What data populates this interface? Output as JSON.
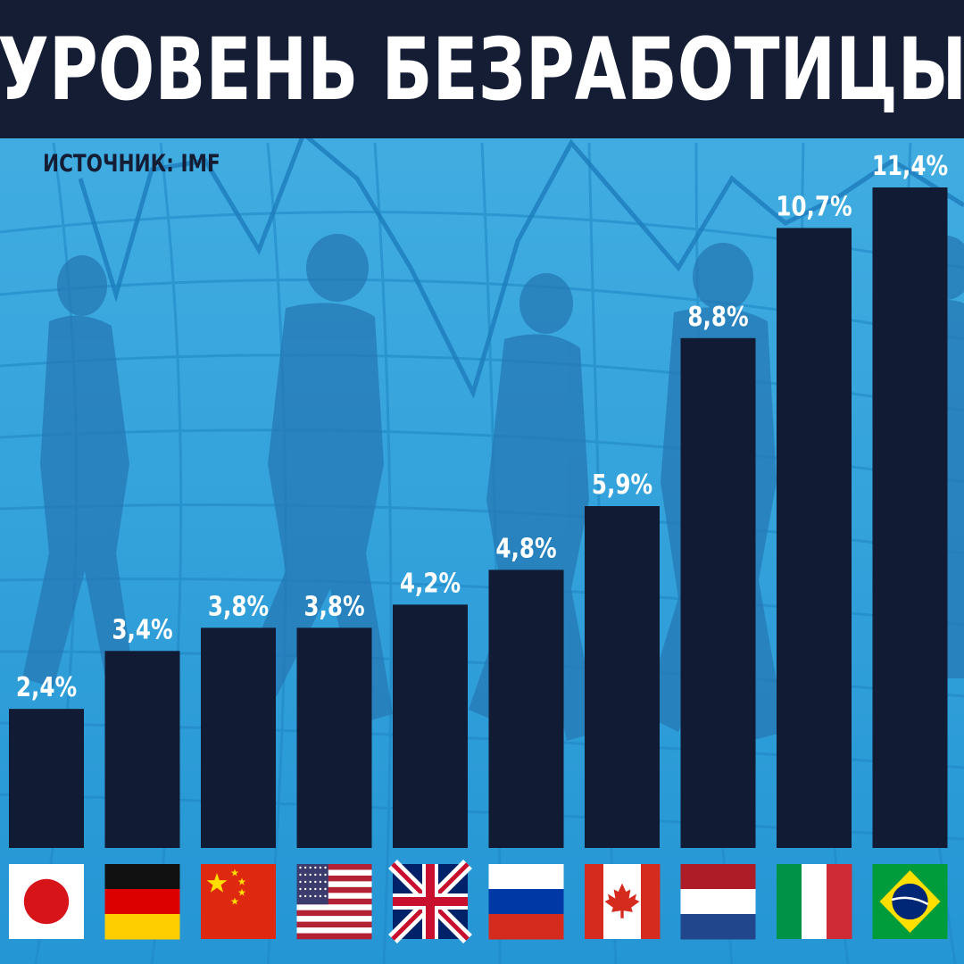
{
  "header": {
    "title": "УРОВЕНЬ БЕЗРАБОТИЦЫ"
  },
  "source": {
    "label": "ИСТОЧНИК: IMF"
  },
  "colors": {
    "bar": "#111b33",
    "header": "#141d34",
    "label": "#ffffff",
    "background_top": "#3aa6dc",
    "background_bottom": "#1e8fd0"
  },
  "chart_data": {
    "type": "bar",
    "title": "УРОВЕНЬ БЕЗРАБОТИЦЫ",
    "xlabel": "",
    "ylabel": "",
    "ylim": [
      0,
      11.4
    ],
    "grid": false,
    "legend": "none",
    "categories": [
      "japan-flag",
      "germany-flag",
      "china-flag",
      "usa-flag",
      "uk-flag",
      "russia-flag",
      "canada-flag",
      "netherlands-flag",
      "italy-flag",
      "brazil-flag"
    ],
    "values": [
      2.4,
      3.4,
      3.8,
      3.8,
      4.2,
      4.8,
      5.9,
      8.8,
      10.7,
      11.4
    ],
    "data_labels": [
      "2,4%",
      "3,4%",
      "3,8%",
      "3,8%",
      "4,2%",
      "4,8%",
      "5,9%",
      "8,8%",
      "10,7%",
      "11,4%"
    ]
  }
}
